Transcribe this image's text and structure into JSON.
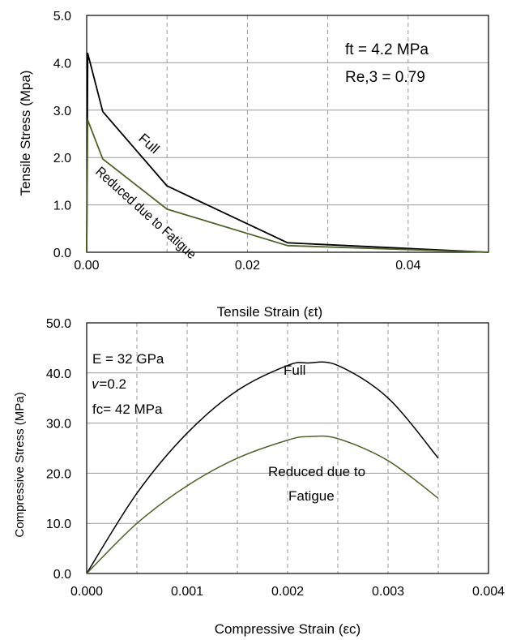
{
  "chart_data": [
    {
      "type": "line",
      "xlabel": "Tensile Strain  (εt)",
      "ylabel": "Tensile Stress (Mpa)",
      "xlim": [
        0,
        0.05
      ],
      "ylim": [
        0,
        5
      ],
      "x_ticks": [
        "0.00",
        "0.02",
        "0.04"
      ],
      "y_ticks": [
        "0.0",
        "1.0",
        "2.0",
        "3.0",
        "4.0",
        "5.0"
      ],
      "grid": true,
      "annotations": {
        "ft": "ft = 4.2 MPa",
        "re3": "Re,3 = 0.79"
      },
      "series": [
        {
          "name": "Full",
          "color": "#000000",
          "x": [
            0,
            0.00013,
            0.002,
            0.01,
            0.025,
            0.05
          ],
          "y": [
            0,
            4.2,
            2.97,
            1.4,
            0.2,
            0
          ]
        },
        {
          "name": "Reduced due to Fatigue",
          "color": "#4f6228",
          "x": [
            0,
            0.00013,
            0.002,
            0.01,
            0.025,
            0.05
          ],
          "y": [
            0,
            2.79,
            1.97,
            0.91,
            0.14,
            0
          ]
        }
      ]
    },
    {
      "type": "line",
      "xlabel": "Compressive Strain (εc)",
      "ylabel": "Compressive Stress (MPa)",
      "xlim": [
        0,
        0.004
      ],
      "ylim": [
        0,
        50
      ],
      "x_ticks": [
        "0.000",
        "0.001",
        "0.002",
        "0.003",
        "0.004"
      ],
      "y_ticks": [
        "0.0",
        "10.0",
        "20.0",
        "30.0",
        "40.0",
        "50.0"
      ],
      "grid": true,
      "annotations": {
        "e": "E = 32 GPa",
        "nu": "𝜈=0.2",
        "fc": "fc= 42 MPa"
      },
      "series": [
        {
          "name": "Full",
          "color": "#000000",
          "x": [
            0,
            0.0005,
            0.001,
            0.0015,
            0.002,
            0.0022,
            0.0025,
            0.003,
            0.0035
          ],
          "y": [
            0,
            16,
            28,
            36.5,
            41.5,
            42,
            41.5,
            35,
            23
          ]
        },
        {
          "name": "Reduced due to Fatigue",
          "color": "#4f6228",
          "x": [
            0,
            0.0005,
            0.001,
            0.0015,
            0.002,
            0.0022,
            0.0025,
            0.003,
            0.0035
          ],
          "y": [
            0,
            10,
            17.5,
            23,
            26.6,
            27.3,
            26.9,
            22.5,
            15
          ]
        }
      ]
    }
  ]
}
